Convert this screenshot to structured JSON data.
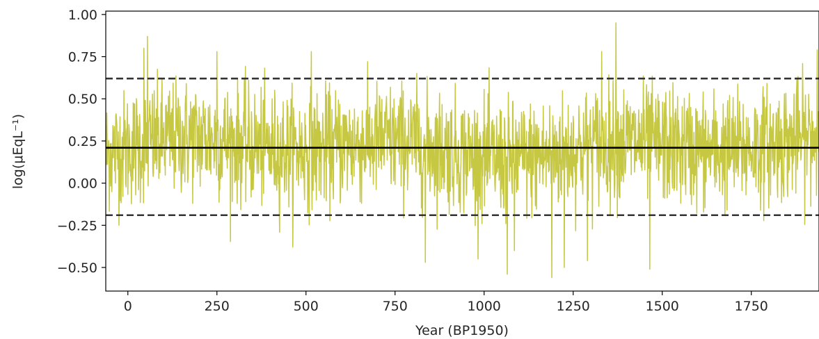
{
  "chart_data": {
    "type": "line",
    "xlabel": "Year (BP1950)",
    "ylabel": "log(μEqL⁻¹)",
    "xlim": [
      -62,
      1940
    ],
    "ylim": [
      -0.64,
      1.02
    ],
    "xticks": [
      0,
      250,
      500,
      750,
      1000,
      1250,
      1500,
      1750
    ],
    "xtick_labels": [
      "0",
      "250",
      "500",
      "750",
      "1000",
      "1250",
      "1500",
      "1750"
    ],
    "yticks": [
      1.0,
      0.75,
      0.5,
      0.25,
      0.0,
      -0.25,
      -0.5
    ],
    "ytick_labels": [
      "1.00",
      "0.75",
      "0.50",
      "0.25",
      "0.00",
      "−0.25",
      "−0.50"
    ],
    "grid": false,
    "series_color": "#bcbd22",
    "reference_lines": [
      {
        "style": "solid",
        "value": 0.21,
        "color": "#000000"
      },
      {
        "style": "dashed",
        "value": 0.62,
        "color": "#333333"
      },
      {
        "style": "dashed",
        "value": -0.19,
        "color": "#333333"
      }
    ],
    "series": [
      {
        "x_start": -62,
        "x_step": 1,
        "n": 2003,
        "mean": 0.21,
        "noise_sd": 0.17,
        "spikes": [
          {
            "x": 55,
            "y": 0.87
          },
          {
            "x": 45,
            "y": 0.8
          },
          {
            "x": 250,
            "y": 0.78
          },
          {
            "x": 515,
            "y": 0.78
          },
          {
            "x": 1370,
            "y": 0.95
          },
          {
            "x": 1935,
            "y": 0.79
          },
          {
            "x": 1330,
            "y": 0.78
          },
          {
            "x": 835,
            "y": -0.47
          },
          {
            "x": 1065,
            "y": -0.54
          },
          {
            "x": 1190,
            "y": -0.56
          },
          {
            "x": 1225,
            "y": -0.5
          },
          {
            "x": 1465,
            "y": -0.51
          },
          {
            "x": 1290,
            "y": -0.46
          },
          {
            "x": 1085,
            "y": -0.4
          }
        ]
      }
    ]
  }
}
